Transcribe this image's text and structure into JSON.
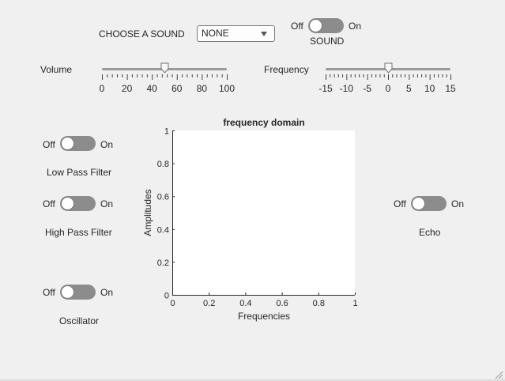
{
  "sound": {
    "label": "CHOOSE A SOUND",
    "selected": "NONE"
  },
  "sound_toggle": {
    "off": "Off",
    "on": "On",
    "caption": "SOUND"
  },
  "volume": {
    "label": "Volume",
    "ticks": [
      "0",
      "20",
      "40",
      "60",
      "80",
      "100"
    ],
    "value": 50,
    "min": 0,
    "max": 100
  },
  "frequency": {
    "label": "Frequency",
    "ticks": [
      "-15",
      "-10",
      "-5",
      "0",
      "5",
      "10",
      "15"
    ],
    "value": 0,
    "min": -15,
    "max": 15
  },
  "low_pass": {
    "off": "Off",
    "on": "On",
    "caption": "Low Pass Filter"
  },
  "high_pass": {
    "off": "Off",
    "on": "On",
    "caption": "High Pass Filter"
  },
  "oscillator": {
    "off": "Off",
    "on": "On",
    "caption": "Oscillator"
  },
  "echo": {
    "off": "Off",
    "on": "On",
    "caption": "Echo"
  },
  "chart_data": {
    "type": "line",
    "title": "frequency domain",
    "xlabel": "Frequencies",
    "ylabel": "Amplitudes",
    "xlim": [
      0,
      1
    ],
    "ylim": [
      0,
      1
    ],
    "xticks": [
      "0",
      "0.2",
      "0.4",
      "0.6",
      "0.8",
      "1"
    ],
    "yticks": [
      "0",
      "0.2",
      "0.4",
      "0.6",
      "0.8",
      "1"
    ],
    "series": [],
    "grid": false
  }
}
